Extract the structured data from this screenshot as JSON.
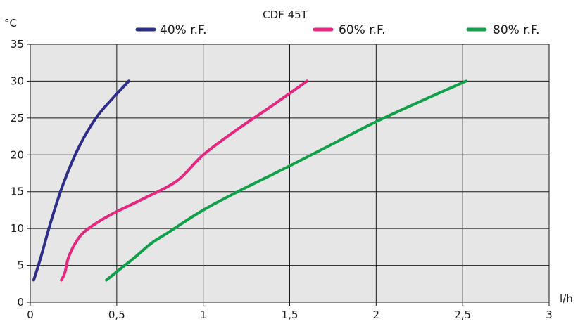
{
  "chart_data": {
    "type": "line",
    "title": "CDF 45T",
    "xlabel": "l/h",
    "ylabel": "°C",
    "xlim": [
      0,
      3
    ],
    "ylim": [
      0,
      35
    ],
    "x_ticks": [
      0,
      0.5,
      1,
      1.5,
      2,
      2.5,
      3
    ],
    "x_tick_labels": [
      "0",
      "0,5",
      "1",
      "1,5",
      "2",
      "2,5",
      "3"
    ],
    "y_ticks": [
      0,
      5,
      10,
      15,
      20,
      25,
      30,
      35
    ],
    "y_tick_labels": [
      "0",
      "5",
      "10",
      "15",
      "20",
      "25",
      "30",
      "35"
    ],
    "grid": true,
    "plot_background": "#e6e6e6",
    "legend_position": "top",
    "series": [
      {
        "name": "40% r.F.",
        "color": "#2e2e8a",
        "points": [
          [
            0.02,
            3
          ],
          [
            0.06,
            6
          ],
          [
            0.12,
            11
          ],
          [
            0.19,
            16
          ],
          [
            0.28,
            21
          ],
          [
            0.38,
            25
          ],
          [
            0.47,
            27.5
          ],
          [
            0.57,
            30
          ]
        ]
      },
      {
        "name": "60% r.F.",
        "color": "#e6267f",
        "points": [
          [
            0.18,
            3
          ],
          [
            0.2,
            4
          ],
          [
            0.22,
            6
          ],
          [
            0.26,
            8
          ],
          [
            0.31,
            9.5
          ],
          [
            0.4,
            11
          ],
          [
            0.5,
            12.3
          ],
          [
            0.65,
            14
          ],
          [
            0.85,
            16.5
          ],
          [
            1.0,
            20
          ],
          [
            1.2,
            23.5
          ],
          [
            1.4,
            26.7
          ],
          [
            1.6,
            30
          ]
        ]
      },
      {
        "name": "80% r.F.",
        "color": "#0fa049",
        "points": [
          [
            0.44,
            3
          ],
          [
            0.52,
            4.5
          ],
          [
            0.6,
            6
          ],
          [
            0.7,
            8
          ],
          [
            0.8,
            9.5
          ],
          [
            1.0,
            12.5
          ],
          [
            1.2,
            15
          ],
          [
            1.5,
            18.5
          ],
          [
            1.75,
            21.5
          ],
          [
            2.0,
            24.5
          ],
          [
            2.25,
            27.2
          ],
          [
            2.52,
            30
          ]
        ]
      }
    ]
  }
}
